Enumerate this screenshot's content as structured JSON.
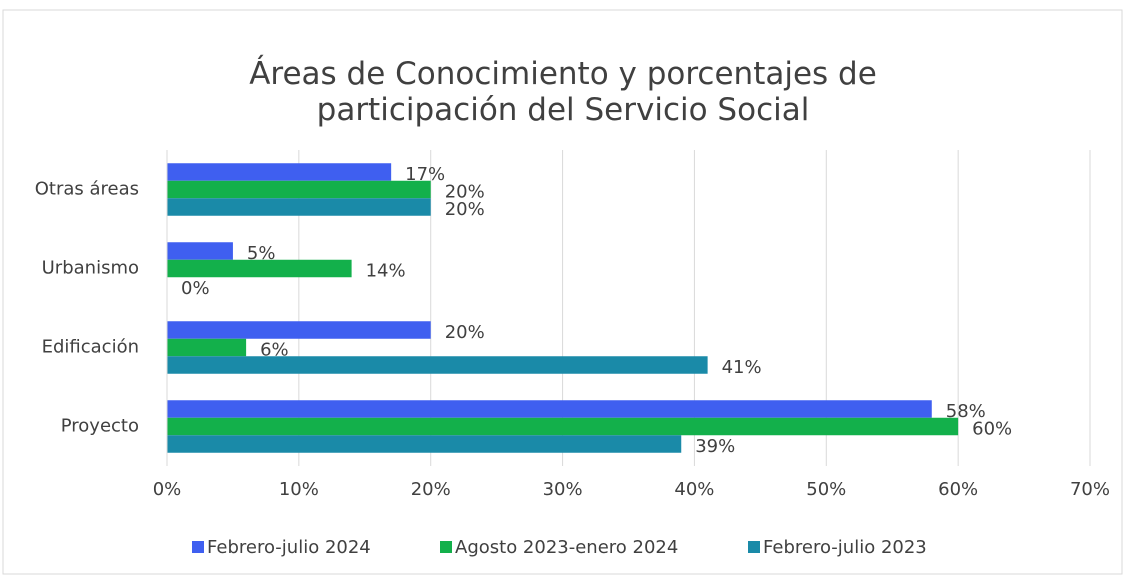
{
  "chart_data": {
    "type": "bar",
    "orientation": "horizontal",
    "title": "Áreas de Conocimiento y porcentajes de participación del Servicio Social",
    "categories": [
      "Proyecto",
      "Edificación",
      "Urbanismo",
      "Otras áreas"
    ],
    "series": [
      {
        "name": "Febrero-julio 2024",
        "color": "#3f5ff0",
        "values": [
          58,
          20,
          5,
          17
        ],
        "value_labels": [
          "58%",
          "20%",
          "5%",
          "17%"
        ]
      },
      {
        "name": "Agosto 2023-enero 2024",
        "color": "#13b04b",
        "values": [
          60,
          6,
          14,
          20
        ],
        "value_labels": [
          "60%",
          "6%",
          "14%",
          "20%"
        ]
      },
      {
        "name": "Febrero-julio 2023",
        "color": "#1a8aa8",
        "values": [
          39,
          41,
          0,
          20
        ],
        "value_labels": [
          "39%",
          "41%",
          "0%",
          "20%"
        ]
      }
    ],
    "xlim": [
      0,
      70
    ],
    "xticks": [
      {
        "value": 0,
        "label": "0%"
      },
      {
        "value": 10,
        "label": "10%"
      },
      {
        "value": 20,
        "label": "20%"
      },
      {
        "value": 30,
        "label": "30%"
      },
      {
        "value": 40,
        "label": "40%"
      },
      {
        "value": 50,
        "label": "50%"
      },
      {
        "value": 60,
        "label": "60%"
      },
      {
        "value": 70,
        "label": "70%"
      }
    ],
    "grid": true,
    "legend": "bottom"
  }
}
